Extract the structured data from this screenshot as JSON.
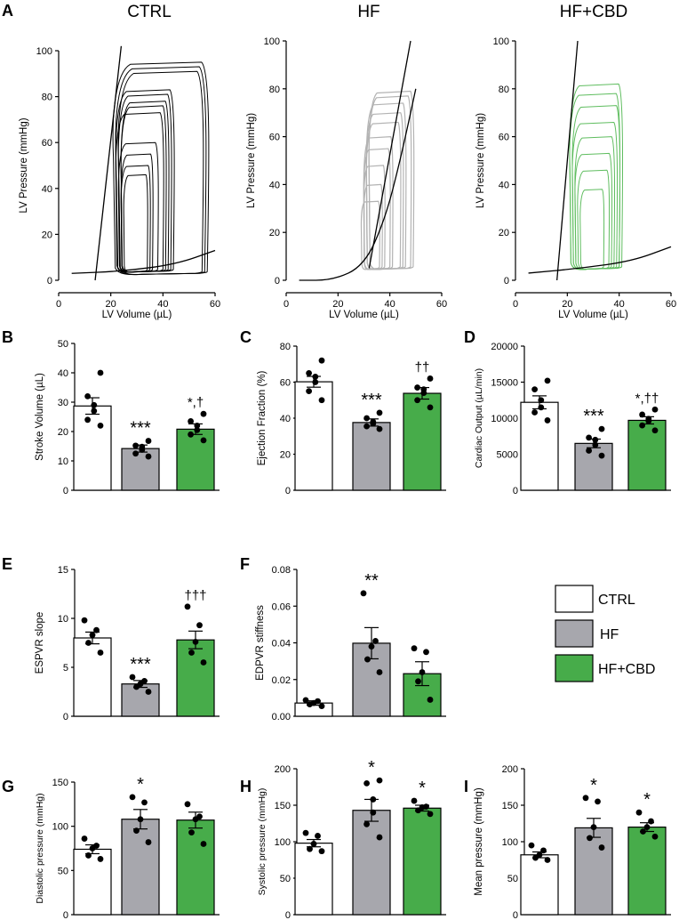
{
  "pv": [
    {
      "title": "CTRL",
      "xlabel": "LV Volume (µL)",
      "ylabel": "LV Pressure (mmHg)",
      "xticks": [
        "0",
        "20",
        "40",
        "60"
      ],
      "yticks": [
        "0",
        "20",
        "40",
        "60",
        "80",
        "100"
      ]
    },
    {
      "title": "HF",
      "xlabel": "LV Volume (µL)",
      "ylabel": "LV Pressure (mmHg)",
      "xticks": [
        "0",
        "20",
        "40",
        "60"
      ],
      "yticks": [
        "0",
        "20",
        "40",
        "60",
        "80",
        "100"
      ]
    },
    {
      "title": "HF+CBD",
      "xlabel": "LV Volume (µL)",
      "ylabel": "LV Pressure (mmHg)",
      "xticks": [
        "0",
        "20",
        "40",
        "60"
      ],
      "yticks": [
        "0",
        "20",
        "40",
        "60",
        "80",
        "100"
      ]
    }
  ],
  "panels": {
    "A": "A",
    "B": "B",
    "C": "C",
    "D": "D",
    "E": "E",
    "F": "F",
    "G": "G",
    "H": "H",
    "I": "I"
  },
  "legend": [
    {
      "label": "CTRL",
      "color": "#ffffff"
    },
    {
      "label": "HF",
      "color": "#a7a7ad"
    },
    {
      "label": "HF+CBD",
      "color": "#47ac4a"
    }
  ],
  "colors": {
    "ctrl": "#ffffff",
    "hf": "#a7a7ad",
    "cbd": "#47ac4a",
    "hf_loop": "#b3b3b3",
    "cbd_loop": "#5fbd5f"
  },
  "chart_data": [
    {
      "type": "line",
      "panel": "A-CTRL",
      "title": "CTRL",
      "xlabel": "LV Volume (µL)",
      "ylabel": "LV Pressure (mmHg)",
      "xlim": [
        0,
        60
      ],
      "ylim": [
        0,
        100
      ],
      "espvr": {
        "points": [
          [
            14,
            0
          ],
          [
            24,
            102
          ]
        ]
      },
      "edpvr": {
        "points": [
          [
            5,
            3
          ],
          [
            25,
            4
          ],
          [
            45,
            7
          ],
          [
            60,
            13
          ]
        ]
      },
      "loops": [
        {
          "v_es": 21,
          "v_ed": 57,
          "p_max": 95,
          "p_min": 3
        },
        {
          "v_es": 22,
          "v_ed": 56,
          "p_max": 93,
          "p_min": 3
        },
        {
          "v_es": 23,
          "v_ed": 55,
          "p_max": 91,
          "p_min": 3
        },
        {
          "v_es": 22,
          "v_ed": 44,
          "p_max": 83,
          "p_min": 4
        },
        {
          "v_es": 23,
          "v_ed": 43,
          "p_max": 81,
          "p_min": 4
        },
        {
          "v_es": 24,
          "v_ed": 42,
          "p_max": 78,
          "p_min": 4
        },
        {
          "v_es": 24,
          "v_ed": 41,
          "p_max": 76,
          "p_min": 4
        },
        {
          "v_es": 22,
          "v_ed": 40,
          "p_max": 73,
          "p_min": 4
        },
        {
          "v_es": 23,
          "v_ed": 38,
          "p_max": 60,
          "p_min": 4
        },
        {
          "v_es": 24,
          "v_ed": 36,
          "p_max": 55,
          "p_min": 4
        },
        {
          "v_es": 24,
          "v_ed": 35,
          "p_max": 50,
          "p_min": 4
        },
        {
          "v_es": 25,
          "v_ed": 34,
          "p_max": 46,
          "p_min": 4
        }
      ]
    },
    {
      "type": "line",
      "panel": "A-HF",
      "title": "HF",
      "xlabel": "LV Volume (µL)",
      "ylabel": "LV Pressure (mmHg)",
      "xlim": [
        0,
        60
      ],
      "ylim": [
        0,
        100
      ],
      "espvr": {
        "points": [
          [
            32,
            5
          ],
          [
            48,
            100
          ]
        ]
      },
      "edpvr": {
        "points": [
          [
            5,
            0
          ],
          [
            18,
            0
          ],
          [
            30,
            6
          ],
          [
            38,
            25
          ],
          [
            44,
            50
          ],
          [
            50,
            80
          ]
        ]
      },
      "loops": [
        {
          "v_es": 32,
          "v_ed": 49,
          "p_max": 79,
          "p_min": 5
        },
        {
          "v_es": 32,
          "v_ed": 48,
          "p_max": 77,
          "p_min": 5
        },
        {
          "v_es": 31,
          "v_ed": 46,
          "p_max": 74,
          "p_min": 5
        },
        {
          "v_es": 31,
          "v_ed": 45,
          "p_max": 70,
          "p_min": 5
        },
        {
          "v_es": 31,
          "v_ed": 44,
          "p_max": 66,
          "p_min": 5
        },
        {
          "v_es": 30,
          "v_ed": 41,
          "p_max": 60,
          "p_min": 5
        },
        {
          "v_es": 30,
          "v_ed": 40,
          "p_max": 55,
          "p_min": 5
        },
        {
          "v_es": 30,
          "v_ed": 38,
          "p_max": 48,
          "p_min": 5
        },
        {
          "v_es": 30,
          "v_ed": 37,
          "p_max": 40,
          "p_min": 5
        },
        {
          "v_es": 29,
          "v_ed": 36,
          "p_max": 33,
          "p_min": 5
        }
      ]
    },
    {
      "type": "line",
      "panel": "A-HF+CBD",
      "title": "HF+CBD",
      "xlabel": "LV Volume (µL)",
      "ylabel": "LV Pressure (mmHg)",
      "xlim": [
        0,
        60
      ],
      "ylim": [
        0,
        100
      ],
      "espvr": {
        "points": [
          [
            16,
            0
          ],
          [
            24,
            100
          ]
        ]
      },
      "edpvr": {
        "points": [
          [
            5,
            3
          ],
          [
            25,
            5
          ],
          [
            45,
            8
          ],
          [
            60,
            14
          ]
        ]
      },
      "loops": [
        {
          "v_es": 21,
          "v_ed": 41,
          "p_max": 82,
          "p_min": 5
        },
        {
          "v_es": 21,
          "v_ed": 40,
          "p_max": 78,
          "p_min": 5
        },
        {
          "v_es": 22,
          "v_ed": 40,
          "p_max": 73,
          "p_min": 5
        },
        {
          "v_es": 22,
          "v_ed": 39,
          "p_max": 66,
          "p_min": 5
        },
        {
          "v_es": 23,
          "v_ed": 38,
          "p_max": 60,
          "p_min": 5
        },
        {
          "v_es": 23,
          "v_ed": 37,
          "p_max": 53,
          "p_min": 5
        },
        {
          "v_es": 24,
          "v_ed": 36,
          "p_max": 46,
          "p_min": 5
        },
        {
          "v_es": 25,
          "v_ed": 34,
          "p_max": 38,
          "p_min": 5
        }
      ]
    },
    {
      "type": "bar",
      "panel": "B",
      "ylabel": "Stroke Volume (µL)",
      "categories": [
        "CTRL",
        "HF",
        "HF+CBD"
      ],
      "ylim": [
        0,
        50
      ],
      "yticks": [
        "0",
        "10",
        "20",
        "30",
        "40",
        "50"
      ],
      "values": [
        28.7,
        14.2,
        20.8
      ],
      "sem": [
        2.8,
        1.2,
        1.8
      ],
      "points": [
        [
          22,
          24,
          27,
          29,
          32,
          40
        ],
        [
          11.5,
          12.5,
          13.8,
          14.8,
          15.2,
          16.8
        ],
        [
          17,
          19,
          20.5,
          22,
          23.5,
          26
        ]
      ],
      "significance": [
        "",
        "***",
        "*,†"
      ]
    },
    {
      "type": "bar",
      "panel": "C",
      "ylabel": "Ejection Fraction (%)",
      "categories": [
        "CTRL",
        "HF",
        "HF+CBD"
      ],
      "ylim": [
        0,
        80
      ],
      "yticks": [
        "0",
        "20",
        "40",
        "60",
        "80"
      ],
      "values": [
        60.2,
        37.6,
        53.8
      ],
      "sem": [
        3.0,
        2.0,
        3.2
      ],
      "points": [
        [
          50,
          55,
          60,
          63,
          65,
          72
        ],
        [
          34,
          35.5,
          37,
          38,
          40,
          43
        ],
        [
          46,
          50,
          54,
          56,
          57,
          62
        ]
      ],
      "significance": [
        "",
        "***",
        "††"
      ]
    },
    {
      "type": "bar",
      "panel": "D",
      "ylabel": "Cardiac Output (µL/min)",
      "categories": [
        "CTRL",
        "HF",
        "HF+CBD"
      ],
      "ylim": [
        0,
        20000
      ],
      "yticks": [
        "0",
        "5000",
        "10000",
        "15000",
        "20000"
      ],
      "values": [
        12200,
        6500,
        9700
      ],
      "sem": [
        900,
        600,
        500
      ],
      "points": [
        [
          9700,
          10800,
          11500,
          12500,
          14000,
          15200
        ],
        [
          4800,
          5500,
          6300,
          7000,
          7300,
          8500
        ],
        [
          8300,
          9000,
          9600,
          9900,
          10500,
          11200
        ]
      ],
      "significance": [
        "",
        "***",
        "*,††"
      ]
    },
    {
      "type": "bar",
      "panel": "E",
      "ylabel": "ESPVR slope",
      "categories": [
        "CTRL",
        "HF",
        "HF+CBD"
      ],
      "ylim": [
        0,
        15
      ],
      "yticks": [
        "0",
        "5",
        "10",
        "15"
      ],
      "values": [
        8.0,
        3.3,
        7.8
      ],
      "sem": [
        0.6,
        0.35,
        0.9
      ],
      "points": [
        [
          6.5,
          7.5,
          8.3,
          8.8,
          9.8
        ],
        [
          2.5,
          3.0,
          3.3,
          3.6,
          4.0
        ],
        [
          5.5,
          6.5,
          7.6,
          9.3,
          11.2
        ]
      ],
      "significance": [
        "",
        "***",
        "†††"
      ]
    },
    {
      "type": "bar",
      "panel": "F",
      "ylabel": "EDPVR stiffness",
      "categories": [
        "CTRL",
        "HF",
        "HF+CBD"
      ],
      "ylim": [
        0,
        0.08
      ],
      "yticks": [
        "0.00",
        "0.02",
        "0.04",
        "0.06",
        "0.08"
      ],
      "values": [
        0.0072,
        0.0398,
        0.0232
      ],
      "sem": [
        0.0012,
        0.0085,
        0.0065
      ],
      "points": [
        [
          0.0055,
          0.0065,
          0.0072,
          0.0082,
          0.0088
        ],
        [
          0.024,
          0.031,
          0.038,
          0.041,
          0.067
        ],
        [
          0.009,
          0.019,
          0.024,
          0.035,
          0.037
        ]
      ],
      "significance": [
        "",
        "**",
        ""
      ]
    },
    {
      "type": "bar",
      "panel": "G",
      "ylabel": "Diastolic pressure (mmHg)",
      "categories": [
        "CTRL",
        "HF",
        "HF+CBD"
      ],
      "ylim": [
        0,
        150
      ],
      "yticks": [
        "0",
        "50",
        "100",
        "150"
      ],
      "values": [
        74,
        108,
        107
      ],
      "sem": [
        5,
        11,
        9
      ],
      "points": [
        [
          63,
          67,
          75,
          78,
          86
        ],
        [
          82,
          95,
          108,
          127,
          133
        ],
        [
          80,
          93,
          108,
          111,
          125
        ]
      ],
      "significance": [
        "",
        "*",
        ""
      ]
    },
    {
      "type": "bar",
      "panel": "H",
      "ylabel": "Systolic pressure (mmHg)",
      "categories": [
        "CTRL",
        "HF",
        "HF+CBD"
      ],
      "ylim": [
        0,
        200
      ],
      "yticks": [
        "0",
        "50",
        "100",
        "150",
        "200"
      ],
      "values": [
        98,
        143,
        146
      ],
      "sem": [
        5,
        15,
        4
      ],
      "points": [
        [
          87,
          90,
          97,
          108,
          112
        ],
        [
          106,
          124,
          140,
          158,
          180,
          184
        ],
        [
          138,
          143,
          147,
          148,
          156
        ]
      ],
      "significance": [
        "",
        "*",
        "*"
      ]
    },
    {
      "type": "bar",
      "panel": "I",
      "ylabel": "Mean pressure (mmHg)",
      "categories": [
        "CTRL",
        "HF",
        "HF+CBD"
      ],
      "ylim": [
        0,
        200
      ],
      "yticks": [
        "0",
        "50",
        "100",
        "150",
        "200"
      ],
      "values": [
        82,
        119,
        120
      ],
      "sem": [
        4,
        13,
        6
      ],
      "points": [
        [
          75,
          78,
          82,
          88,
          95
        ],
        [
          92,
          105,
          120,
          155,
          160
        ],
        [
          107,
          114,
          120,
          128,
          140
        ]
      ],
      "significance": [
        "",
        "*",
        "*"
      ]
    }
  ]
}
